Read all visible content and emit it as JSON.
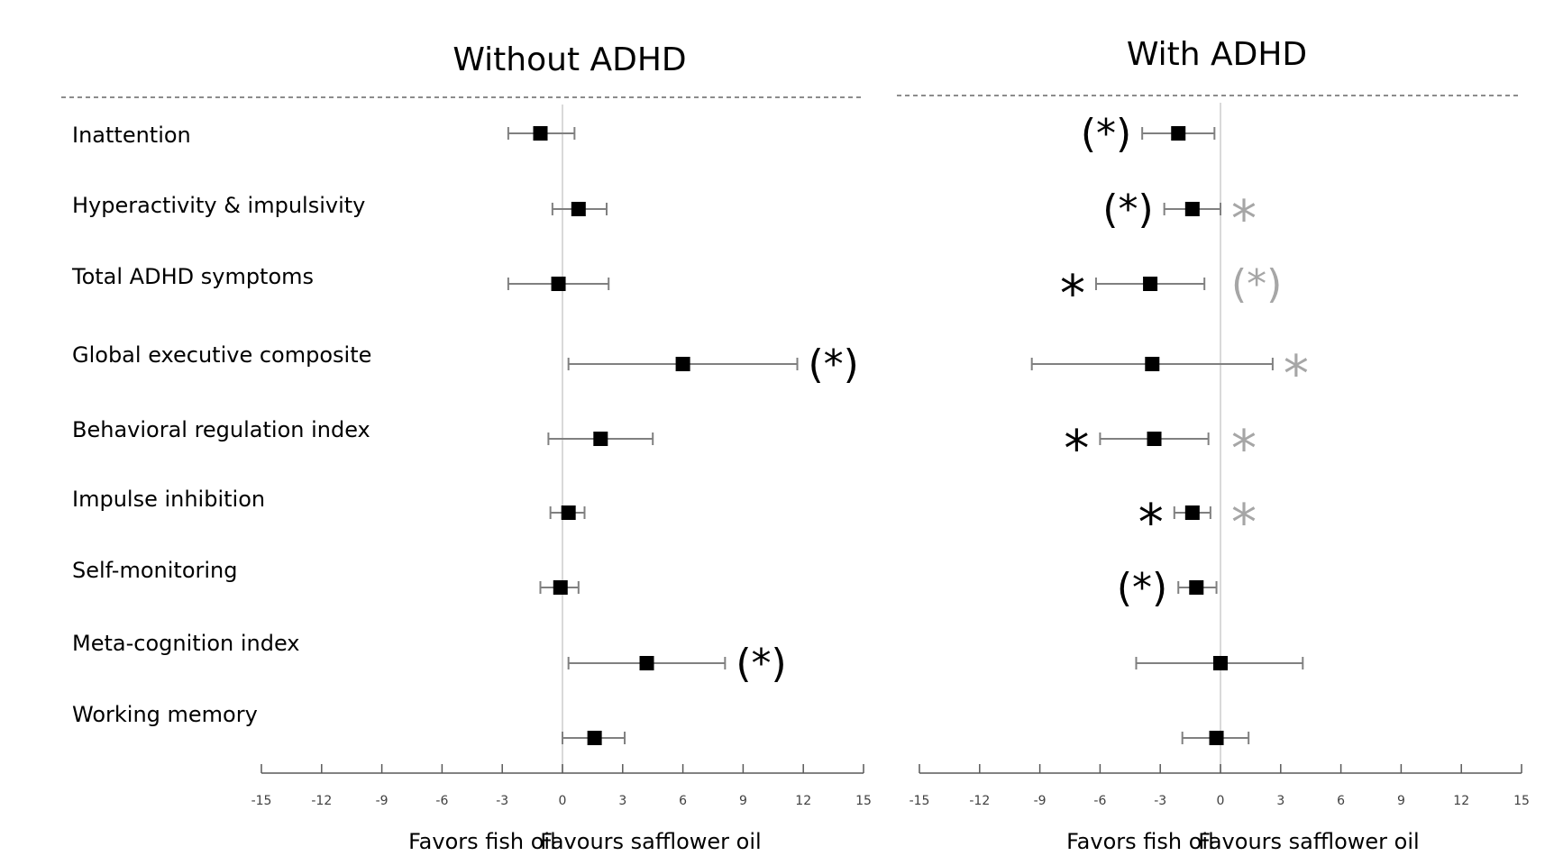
{
  "chart_data": {
    "type": "forest",
    "outcomes": [
      "Inattention",
      "Hyperactivity & impulsivity",
      "Total ADHD symptoms",
      "Global executive composite",
      "Behavioral regulation index",
      "Impulse inhibition",
      "Self-monitoring",
      "Meta-cognition index",
      "Working memory"
    ],
    "xlim": [
      -15,
      15
    ],
    "x_ticks": [
      -15,
      -12,
      -9,
      -6,
      -3,
      0,
      3,
      6,
      9,
      12,
      15
    ],
    "reference_line": 0,
    "left_label": "Favors fish oil",
    "right_label": "Favours safflower oil",
    "panels": [
      {
        "title": "Without ADHD",
        "points": [
          {
            "estimate": -1.1,
            "lower": -2.7,
            "upper": 0.6,
            "left_mark": "",
            "right_mark": ""
          },
          {
            "estimate": 0.8,
            "lower": -0.5,
            "upper": 2.2,
            "left_mark": "",
            "right_mark": ""
          },
          {
            "estimate": -0.2,
            "lower": -2.7,
            "upper": 2.3,
            "left_mark": "",
            "right_mark": ""
          },
          {
            "estimate": 6.0,
            "lower": 0.3,
            "upper": 11.7,
            "left_mark": "",
            "right_mark": "(*)"
          },
          {
            "estimate": 1.9,
            "lower": -0.7,
            "upper": 4.5,
            "left_mark": "",
            "right_mark": ""
          },
          {
            "estimate": 0.3,
            "lower": -0.6,
            "upper": 1.1,
            "left_mark": "",
            "right_mark": ""
          },
          {
            "estimate": -0.1,
            "lower": -1.1,
            "upper": 0.8,
            "left_mark": "",
            "right_mark": ""
          },
          {
            "estimate": 4.2,
            "lower": 0.3,
            "upper": 8.1,
            "left_mark": "",
            "right_mark": "(*)"
          },
          {
            "estimate": 1.6,
            "lower": 0.0,
            "upper": 3.1,
            "left_mark": "",
            "right_mark": ""
          }
        ]
      },
      {
        "title": "With ADHD",
        "points": [
          {
            "estimate": -2.1,
            "lower": -3.9,
            "upper": -0.3,
            "left_mark": "(*)",
            "right_mark": ""
          },
          {
            "estimate": -1.4,
            "lower": -2.8,
            "upper": 0.0,
            "left_mark": "(*)",
            "right_mark": "*"
          },
          {
            "estimate": -3.5,
            "lower": -6.2,
            "upper": -0.8,
            "left_mark": "*",
            "right_mark": "(*)"
          },
          {
            "estimate": -3.4,
            "lower": -9.4,
            "upper": 2.6,
            "left_mark": "",
            "right_mark": "*"
          },
          {
            "estimate": -3.3,
            "lower": -6.0,
            "upper": -0.6,
            "left_mark": "*",
            "right_mark": "*"
          },
          {
            "estimate": -1.4,
            "lower": -2.3,
            "upper": -0.5,
            "left_mark": "*",
            "right_mark": "*"
          },
          {
            "estimate": -1.2,
            "lower": -2.1,
            "upper": -0.2,
            "left_mark": "(*)",
            "right_mark": ""
          },
          {
            "estimate": 0.0,
            "lower": -4.2,
            "upper": 4.1,
            "left_mark": "",
            "right_mark": ""
          },
          {
            "estimate": -0.2,
            "lower": -1.9,
            "upper": 1.4,
            "left_mark": "",
            "right_mark": ""
          }
        ]
      }
    ],
    "colors": {
      "marker": "#000000",
      "ci_line": "#808080",
      "reference": "#d9d9d9",
      "mark_black": "#000000",
      "mark_grey": "#a6a6a6",
      "axis": "#595959"
    }
  }
}
